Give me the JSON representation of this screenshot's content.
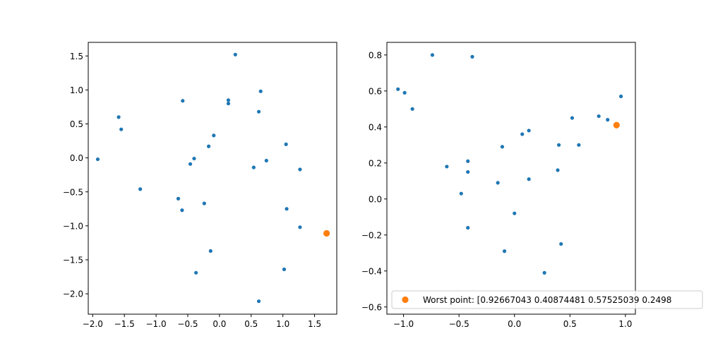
{
  "chart_data": [
    {
      "type": "scatter",
      "xlim": [
        -2.07,
        1.85
      ],
      "ylim": [
        -2.3,
        1.7
      ],
      "xticks": [
        -2.0,
        -1.5,
        -1.0,
        -0.5,
        0.0,
        0.5,
        1.0,
        1.5
      ],
      "xtick_labels": [
        "−2.0",
        "−1.5",
        "−1.0",
        "−0.5",
        "0.0",
        "0.5",
        "1.0",
        "1.5"
      ],
      "yticks": [
        -2.0,
        -1.5,
        -1.0,
        -0.5,
        0.0,
        0.5,
        1.0,
        1.5
      ],
      "ytick_labels": [
        "−2.0",
        "−1.5",
        "−1.0",
        "−0.5",
        "0.0",
        "0.5",
        "1.0",
        "1.5"
      ],
      "grid": false,
      "series": [
        {
          "color": "#1f77b4",
          "points": [
            [
              0.25,
              1.52
            ],
            [
              0.65,
              0.98
            ],
            [
              0.14,
              0.85
            ],
            [
              0.14,
              0.8
            ],
            [
              0.62,
              0.68
            ],
            [
              -0.58,
              0.84
            ],
            [
              -1.59,
              0.6
            ],
            [
              -1.55,
              0.42
            ],
            [
              -0.09,
              0.33
            ],
            [
              -0.17,
              0.17
            ],
            [
              -1.92,
              -0.02
            ],
            [
              -0.4,
              -0.01
            ],
            [
              -0.46,
              -0.09
            ],
            [
              1.05,
              0.2
            ],
            [
              0.74,
              -0.04
            ],
            [
              0.54,
              -0.14
            ],
            [
              1.27,
              -0.17
            ],
            [
              -1.25,
              -0.46
            ],
            [
              -0.65,
              -0.6
            ],
            [
              -0.59,
              -0.77
            ],
            [
              -0.24,
              -0.67
            ],
            [
              1.06,
              -0.75
            ],
            [
              1.27,
              -1.02
            ],
            [
              -0.14,
              -1.37
            ],
            [
              -0.37,
              -1.69
            ],
            [
              1.02,
              -1.64
            ],
            [
              0.62,
              -2.11
            ]
          ]
        },
        {
          "color": "#ff7f0e",
          "points": [
            [
              1.69,
              -1.11
            ]
          ]
        }
      ]
    },
    {
      "type": "scatter",
      "xlim": [
        -1.15,
        1.09
      ],
      "ylim": [
        -0.64,
        0.87
      ],
      "xticks": [
        -1.0,
        -0.5,
        0.0,
        0.5,
        1.0
      ],
      "xtick_labels": [
        "−1.0",
        "−0.5",
        "0.0",
        "0.5",
        "1.0"
      ],
      "yticks": [
        -0.6,
        -0.4,
        -0.2,
        0.0,
        0.2,
        0.4,
        0.6,
        0.8
      ],
      "ytick_labels": [
        "−0.6",
        "−0.4",
        "−0.2",
        "0.0",
        "0.2",
        "0.4",
        "0.6",
        "0.8"
      ],
      "grid": false,
      "legend_placement": "lower-right",
      "series": [
        {
          "color": "#1f77b4",
          "points": [
            [
              -0.74,
              0.8
            ],
            [
              -0.38,
              0.79
            ],
            [
              -1.05,
              0.61
            ],
            [
              -0.99,
              0.59
            ],
            [
              -0.92,
              0.5
            ],
            [
              0.96,
              0.57
            ],
            [
              0.52,
              0.45
            ],
            [
              0.76,
              0.46
            ],
            [
              0.84,
              0.44
            ],
            [
              0.13,
              0.38
            ],
            [
              0.07,
              0.36
            ],
            [
              0.4,
              0.3
            ],
            [
              0.58,
              0.3
            ],
            [
              -0.11,
              0.29
            ],
            [
              -0.61,
              0.18
            ],
            [
              -0.42,
              0.21
            ],
            [
              -0.42,
              0.15
            ],
            [
              0.39,
              0.16
            ],
            [
              -0.15,
              0.09
            ],
            [
              0.13,
              0.11
            ],
            [
              -0.48,
              0.03
            ],
            [
              0.0,
              -0.08
            ],
            [
              -0.42,
              -0.16
            ],
            [
              -0.09,
              -0.29
            ],
            [
              0.42,
              -0.25
            ],
            [
              0.27,
              -0.41
            ]
          ]
        },
        {
          "color": "#ff7f0e",
          "name": "Worst point: [0.92667043 0.40874481 0.57525039 0.2498",
          "points": [
            [
              0.92,
              0.41
            ]
          ]
        }
      ]
    }
  ]
}
